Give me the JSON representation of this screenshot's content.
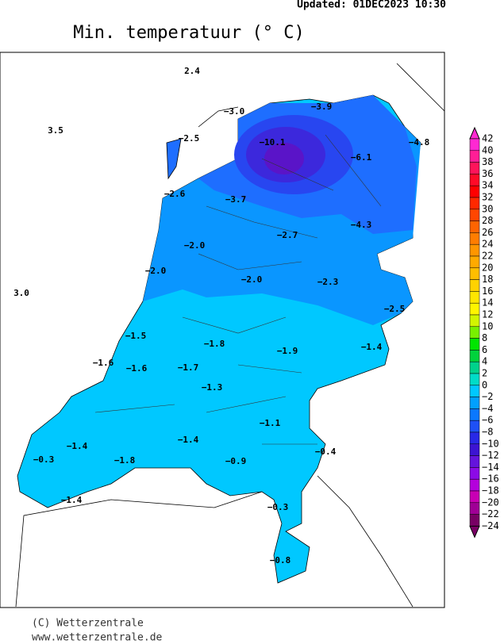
{
  "header": {
    "updated": "Updated:  01DEC2023  10:30",
    "title": "Min. temperatuur (° C)"
  },
  "stations": [
    "2.4",
    "3.5",
    "3.0",
    "−3.0",
    "−3.9",
    "−2.5",
    "−10.1",
    "−6.1",
    "−4.8",
    "−2.6",
    "−3.7",
    "−2.7",
    "−4.3",
    "−2.0",
    "−2.0",
    "−2.0",
    "−2.3",
    "−2.5",
    "−1.5",
    "−1.8",
    "−1.9",
    "−1.4",
    "−1.6",
    "−1.6",
    "−1.7",
    "−1.3",
    "−1.1",
    "−1.4",
    "−0.4",
    "−1.4",
    "−0.3",
    "−1.8",
    "−0.9",
    "−0.3",
    "−1.4",
    "−0.8"
  ],
  "legend": {
    "labels": [
      "42",
      "40",
      "38",
      "36",
      "34",
      "32",
      "30",
      "28",
      "26",
      "24",
      "22",
      "20",
      "18",
      "16",
      "14",
      "12",
      "10",
      "8",
      "6",
      "4",
      "2",
      "0",
      "−2",
      "−4",
      "−6",
      "−8",
      "−10",
      "−12",
      "−14",
      "−16",
      "−18",
      "−20",
      "−22",
      "−24"
    ],
    "colors": [
      "#ff28d2",
      "#ff1e96",
      "#ff145a",
      "#ff0a28",
      "#ff0000",
      "#ff2800",
      "#ff4600",
      "#ff6400",
      "#ff7d00",
      "#ff9600",
      "#ffaa00",
      "#ffbe00",
      "#ffd200",
      "#ffe600",
      "#fff500",
      "#d2f500",
      "#78f000",
      "#00e600",
      "#00d23c",
      "#00d28c",
      "#00dcc8",
      "#00c8ff",
      "#00a0ff",
      "#0a78ff",
      "#1e50f5",
      "#2828e6",
      "#3c14d2",
      "#6414dc",
      "#8c0ae6",
      "#b400dc",
      "#c800b4",
      "#a00096",
      "#780064"
    ]
  },
  "footer": {
    "copyright": "(C) Wetterzentrale",
    "url": "www.wetterzentrale.de"
  }
}
